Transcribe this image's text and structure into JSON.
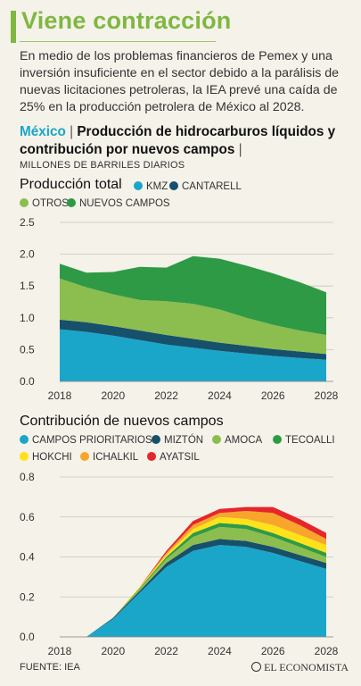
{
  "header": {
    "title": "Viene contracción",
    "intro": "En medio de los problemas financieros de Pemex y una inversión insuficiente en el sector debido a la parálisis de nuevas licitaciones petroleras, la IEA prevé una caída de 25% en la producción petrolera de México al 2028.",
    "country": "México",
    "separator": "|",
    "subtitle": "Producción de hidrocarburos líquidos y contribución por nuevos campos",
    "units": "MILLONES DE BARRILES DIARIOS"
  },
  "colors": {
    "accent": "#7fb741",
    "kmz": "#1aa6c9",
    "cantarell": "#17506b",
    "otros": "#8cbd4f",
    "nuevos_campos": "#2f9a45",
    "campos_prioritarios": "#1aa6c9",
    "mizton": "#17506b",
    "amoca": "#8cbd4f",
    "tecoalli": "#2f9a45",
    "hokchi": "#ffe21a",
    "ichalkil": "#f7a62b",
    "ayatsil": "#e6262a"
  },
  "chart_data": [
    {
      "type": "area",
      "stacked": true,
      "title": "Producción total",
      "x": [
        2018,
        2019,
        2020,
        2021,
        2022,
        2023,
        2024,
        2025,
        2026,
        2027,
        2028
      ],
      "xticks": [
        "2018",
        "2020",
        "2022",
        "2024",
        "2026",
        "2028"
      ],
      "ylim": [
        0,
        2.5
      ],
      "yticks": [
        "0.0",
        "0.5",
        "1.0",
        "1.5",
        "2.0",
        "2.5"
      ],
      "grid": true,
      "legend_position": "top",
      "series": [
        {
          "name": "KMZ",
          "color_key": "kmz",
          "values": [
            0.82,
            0.78,
            0.72,
            0.65,
            0.58,
            0.53,
            0.48,
            0.44,
            0.4,
            0.37,
            0.34
          ]
        },
        {
          "name": "CANTARELL",
          "color_key": "cantarell",
          "values": [
            0.15,
            0.15,
            0.15,
            0.15,
            0.15,
            0.14,
            0.13,
            0.12,
            0.11,
            0.1,
            0.09
          ]
        },
        {
          "name": "OTROS",
          "color_key": "otros",
          "values": [
            0.65,
            0.55,
            0.5,
            0.48,
            0.53,
            0.55,
            0.52,
            0.44,
            0.38,
            0.33,
            0.3
          ]
        },
        {
          "name": "NUEVOS CAMPOS",
          "color_key": "nuevos_campos",
          "values": [
            0.23,
            0.23,
            0.35,
            0.52,
            0.53,
            0.75,
            0.8,
            0.82,
            0.81,
            0.76,
            0.67
          ]
        }
      ]
    },
    {
      "type": "area",
      "stacked": true,
      "title": "Contribución de nuevos campos",
      "x": [
        2018,
        2019,
        2020,
        2021,
        2022,
        2023,
        2024,
        2025,
        2026,
        2027,
        2028
      ],
      "xticks": [
        "2018",
        "2020",
        "2022",
        "2024",
        "2026",
        "2028"
      ],
      "ylim": [
        0,
        0.8
      ],
      "yticks": [
        "0.0",
        "0.2",
        "0.4",
        "0.6",
        "0.8"
      ],
      "grid": true,
      "legend_position": "top",
      "series": [
        {
          "name": "CAMPOS PRIORITARIOS",
          "color_key": "campos_prioritarios",
          "values": [
            0.0,
            0.0,
            0.09,
            0.22,
            0.35,
            0.43,
            0.46,
            0.45,
            0.42,
            0.38,
            0.34
          ]
        },
        {
          "name": "MIZTÓN",
          "color_key": "mizton",
          "values": [
            0.0,
            0.0,
            0.005,
            0.01,
            0.02,
            0.03,
            0.03,
            0.03,
            0.03,
            0.03,
            0.03
          ]
        },
        {
          "name": "AMOCA",
          "color_key": "amoca",
          "values": [
            0.0,
            0.0,
            0.0,
            0.01,
            0.02,
            0.04,
            0.06,
            0.06,
            0.05,
            0.04,
            0.03
          ]
        },
        {
          "name": "TECOALLI",
          "color_key": "tecoalli",
          "values": [
            0.0,
            0.0,
            0.0,
            0.005,
            0.01,
            0.02,
            0.02,
            0.02,
            0.02,
            0.02,
            0.02
          ]
        },
        {
          "name": "HOKCHI",
          "color_key": "hokchi",
          "values": [
            0.0,
            0.0,
            0.0,
            0.005,
            0.01,
            0.02,
            0.03,
            0.03,
            0.04,
            0.04,
            0.04
          ]
        },
        {
          "name": "ICHALKIL",
          "color_key": "ichalkil",
          "values": [
            0.0,
            0.0,
            0.0,
            0.0,
            0.01,
            0.02,
            0.02,
            0.04,
            0.06,
            0.05,
            0.03
          ]
        },
        {
          "name": "AYATSIL",
          "color_key": "ayatsil",
          "values": [
            0.0,
            0.0,
            0.0,
            0.0,
            0.01,
            0.02,
            0.02,
            0.02,
            0.03,
            0.03,
            0.03
          ]
        }
      ]
    }
  ],
  "footer": {
    "source": "FUENTE: IEA",
    "brand": "EL ECONOMISTA"
  }
}
